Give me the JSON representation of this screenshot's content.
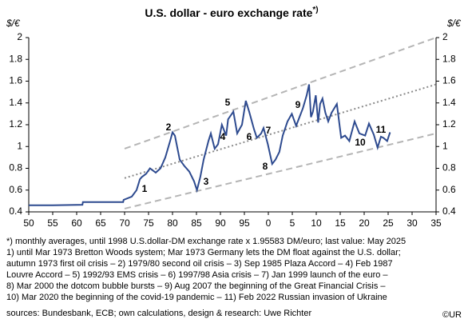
{
  "chart_data": {
    "type": "line",
    "title": "U.S. dollar - euro exchange rate",
    "title_sup": "*)",
    "ylabel": "$/€",
    "x": [
      1950,
      1955,
      1961.2,
      1961.3,
      1969.7,
      1969.8,
      1971.5,
      1972.5,
      1973.2,
      1973.6,
      1974.5,
      1975.3,
      1976.5,
      1977.5,
      1978.5,
      1979.5,
      1980.0,
      1980.5,
      1981.5,
      1982.5,
      1983.5,
      1984.5,
      1985.1,
      1985.8,
      1986.5,
      1987.5,
      1988.0,
      1988.8,
      1989.5,
      1990.3,
      1991.2,
      1991.6,
      1992.7,
      1993.5,
      1994.5,
      1995.3,
      1996.0,
      1997.0,
      1997.6,
      1998.5,
      1999.0,
      1999.9,
      2000.8,
      2001.5,
      2002.3,
      2003.0,
      2004.0,
      2004.9,
      2005.8,
      2006.5,
      2007.2,
      2008.0,
      2008.5,
      2008.9,
      2009.3,
      2009.9,
      2010.4,
      2010.8,
      2011.3,
      2011.9,
      2012.5,
      2013.2,
      2014.3,
      2015.2,
      2016.0,
      2016.9,
      2018.0,
      2019.0,
      2020.2,
      2021.0,
      2022.0,
      2022.8,
      2023.5,
      2024.0,
      2024.8,
      2025.4
    ],
    "series": [
      {
        "name": "USD/EUR",
        "color": "#2d4a8f",
        "values": [
          0.46,
          0.46,
          0.465,
          0.49,
          0.49,
          0.51,
          0.54,
          0.6,
          0.7,
          0.72,
          0.75,
          0.8,
          0.76,
          0.8,
          0.9,
          1.05,
          1.13,
          1.1,
          0.88,
          0.82,
          0.77,
          0.68,
          0.6,
          0.72,
          0.88,
          1.05,
          1.12,
          0.98,
          1.02,
          1.2,
          1.1,
          1.25,
          1.32,
          1.12,
          1.2,
          1.42,
          1.32,
          1.16,
          1.08,
          1.12,
          1.17,
          1.02,
          0.84,
          0.88,
          0.95,
          1.1,
          1.23,
          1.3,
          1.19,
          1.27,
          1.35,
          1.47,
          1.57,
          1.27,
          1.32,
          1.47,
          1.22,
          1.39,
          1.44,
          1.31,
          1.23,
          1.31,
          1.39,
          1.08,
          1.1,
          1.05,
          1.23,
          1.12,
          1.1,
          1.21,
          1.11,
          0.99,
          1.09,
          1.08,
          1.05,
          1.13
        ]
      }
    ],
    "trend_lines": [
      {
        "x": [
          1970,
          2035
        ],
        "values": [
          0.98,
          2.0
        ],
        "color": "#b5b5b5",
        "style": "dashed"
      },
      {
        "x": [
          1970,
          2035
        ],
        "values": [
          0.71,
          1.57
        ],
        "color": "#8a8a8a",
        "style": "dotted"
      },
      {
        "x": [
          1970,
          2035
        ],
        "values": [
          0.43,
          1.12
        ],
        "color": "#b5b5b5",
        "style": "dashed"
      }
    ],
    "xlim": [
      1950,
      2035
    ],
    "xticks": [
      {
        "value": 1950,
        "label": "50"
      },
      {
        "value": 1955,
        "label": "55"
      },
      {
        "value": 1960,
        "label": "60"
      },
      {
        "value": 1965,
        "label": "65"
      },
      {
        "value": 1970,
        "label": "70"
      },
      {
        "value": 1975,
        "label": "75"
      },
      {
        "value": 1980,
        "label": "80"
      },
      {
        "value": 1985,
        "label": "85"
      },
      {
        "value": 1990,
        "label": "90"
      },
      {
        "value": 1995,
        "label": "95"
      },
      {
        "value": 2000,
        "label": "0"
      },
      {
        "value": 2005,
        "label": "5"
      },
      {
        "value": 2010,
        "label": "10"
      },
      {
        "value": 2015,
        "label": "15"
      },
      {
        "value": 2020,
        "label": "20"
      },
      {
        "value": 2025,
        "label": "25"
      },
      {
        "value": 2030,
        "label": "30"
      },
      {
        "value": 2035,
        "label": "35"
      }
    ],
    "ylim": [
      0.4,
      2
    ],
    "yticks": [
      0.4,
      0.6,
      0.8,
      1,
      1.2,
      1.4,
      1.6,
      1.8,
      2
    ],
    "annotations": [
      "1",
      "2",
      "3",
      "4",
      "5",
      "6",
      "7",
      "8",
      "9",
      "10",
      "11"
    ],
    "notes": [
      "*) monthly averages, until 1998 U.S.dollar-DM exchange rate x 1.95583 DM/euro; last value: May  2025",
      "1) until Mar 1973 Bretton Woods system; Mar 1973 Germany lets the DM float against the U.S. dollar;",
      "autumn 1973 first oil crisis  – 2) 1979/80 second oil crisis – 3) Sep 1985 Plaza Accord  – 4) Feb 1987",
      "Louvre Accord  –  5) 1992/93 EMS crisis  –  6) 1997/98 Asia crisis  –  7) Jan 1999 launch of the euro  –",
      "8) Mar 2000 the dotcom bubble bursts  –  9) Aug 2007 the beginning of the Great Financial Crisis  –",
      "10) Mar 2020 the beginning of the covid-19 pandemic  –  11) Feb 2022 Russian invasion of Ukraine"
    ],
    "source": "sources: Bundesbank, ECB; own calculations, design & research: Uwe Richter",
    "copyright": "©UR"
  }
}
